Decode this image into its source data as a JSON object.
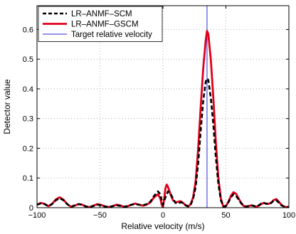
{
  "chart_data": {
    "type": "line",
    "xlabel": "Relative velocity (m/s)",
    "ylabel": "Detector value",
    "xlim": [
      -100,
      100
    ],
    "ylim": [
      0,
      0.68
    ],
    "xticks": [
      -100,
      -50,
      0,
      50,
      100
    ],
    "yticks": [
      0,
      0.1,
      0.2,
      0.3,
      0.4,
      0.5,
      0.6
    ],
    "grid": true,
    "legend_position": "top-left",
    "target_velocity": 35,
    "series": [
      {
        "name": "LR–ANMF–SCM",
        "color": "#000000",
        "style": "dashed",
        "x": [
          -100,
          -97,
          -94,
          -91,
          -88,
          -85,
          -82,
          -79,
          -76,
          -73,
          -70,
          -67,
          -64,
          -61,
          -58,
          -55,
          -52,
          -49,
          -46,
          -43,
          -40,
          -37,
          -34,
          -31,
          -28,
          -25,
          -22,
          -19,
          -16,
          -13,
          -10,
          -7,
          -4,
          -2,
          -1,
          0,
          2,
          4,
          6,
          8,
          10,
          12,
          14,
          16,
          18,
          20,
          22,
          24,
          26,
          28,
          30,
          32,
          34,
          35,
          36,
          38,
          40,
          42,
          44,
          46,
          48,
          50,
          52,
          54,
          56,
          58,
          60,
          62,
          64,
          66,
          68,
          70,
          72,
          74,
          76,
          78,
          80,
          82,
          84,
          86,
          88,
          90,
          92,
          94,
          96,
          98,
          100
        ],
        "y": [
          0.01,
          0.014,
          0.012,
          0.005,
          0.012,
          0.025,
          0.032,
          0.025,
          0.012,
          0.003,
          0.008,
          0.012,
          0.01,
          0.004,
          0.002,
          0.006,
          0.01,
          0.008,
          0.004,
          0.002,
          0.005,
          0.008,
          0.006,
          0.003,
          0.005,
          0.01,
          0.012,
          0.01,
          0.008,
          0.012,
          0.02,
          0.04,
          0.055,
          0.045,
          0.025,
          0.01,
          0.035,
          0.055,
          0.048,
          0.03,
          0.016,
          0.014,
          0.018,
          0.016,
          0.008,
          0.005,
          0.01,
          0.03,
          0.07,
          0.15,
          0.26,
          0.36,
          0.425,
          0.435,
          0.43,
          0.37,
          0.28,
          0.17,
          0.08,
          0.025,
          0.004,
          0.006,
          0.018,
          0.035,
          0.045,
          0.04,
          0.028,
          0.015,
          0.006,
          0.004,
          0.006,
          0.008,
          0.006,
          0.004,
          0.008,
          0.014,
          0.016,
          0.013,
          0.012,
          0.016,
          0.024,
          0.025,
          0.017,
          0.008,
          0.004,
          0.003,
          0.002
        ]
      },
      {
        "name": "LR–ANMF–GSCM",
        "color": "#e0001b",
        "style": "solid",
        "x": [
          -100,
          -97,
          -94,
          -91,
          -88,
          -85,
          -82,
          -79,
          -76,
          -73,
          -70,
          -67,
          -64,
          -61,
          -58,
          -55,
          -52,
          -49,
          -46,
          -43,
          -40,
          -37,
          -34,
          -31,
          -28,
          -25,
          -22,
          -19,
          -16,
          -13,
          -10,
          -7,
          -4,
          -2,
          -1,
          0,
          1,
          2,
          3,
          4,
          6,
          8,
          10,
          12,
          14,
          16,
          18,
          20,
          22,
          24,
          26,
          28,
          30,
          32,
          34,
          35,
          36,
          38,
          40,
          42,
          44,
          46,
          48,
          50,
          52,
          54,
          56,
          58,
          60,
          62,
          64,
          66,
          68,
          70,
          72,
          74,
          76,
          78,
          80,
          82,
          84,
          86,
          88,
          90,
          92,
          94,
          96,
          98,
          100
        ],
        "y": [
          0.01,
          0.016,
          0.013,
          0.005,
          0.013,
          0.028,
          0.035,
          0.027,
          0.012,
          0.003,
          0.007,
          0.012,
          0.01,
          0.003,
          0.002,
          0.007,
          0.012,
          0.009,
          0.004,
          0.002,
          0.005,
          0.01,
          0.008,
          0.003,
          0.005,
          0.01,
          0.014,
          0.01,
          0.007,
          0.01,
          0.018,
          0.035,
          0.045,
          0.03,
          0.01,
          0.002,
          0.03,
          0.065,
          0.078,
          0.07,
          0.045,
          0.025,
          0.018,
          0.02,
          0.022,
          0.016,
          0.008,
          0.004,
          0.012,
          0.035,
          0.09,
          0.2,
          0.34,
          0.47,
          0.565,
          0.595,
          0.585,
          0.5,
          0.37,
          0.22,
          0.1,
          0.03,
          0.003,
          0.005,
          0.02,
          0.04,
          0.052,
          0.047,
          0.032,
          0.017,
          0.006,
          0.003,
          0.005,
          0.008,
          0.006,
          0.003,
          0.006,
          0.012,
          0.016,
          0.014,
          0.013,
          0.017,
          0.026,
          0.029,
          0.02,
          0.01,
          0.004,
          0.002,
          0.002
        ]
      },
      {
        "name": "Target relative velocity",
        "color": "#2b2bd9",
        "style": "solid",
        "x": [
          35,
          35
        ],
        "y": [
          0,
          0.68
        ]
      }
    ]
  }
}
